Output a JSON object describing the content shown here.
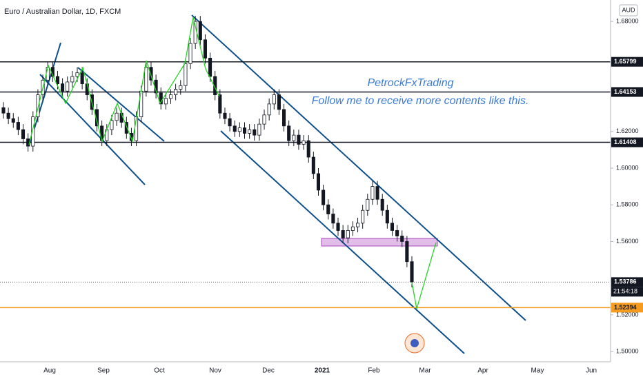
{
  "chart_data": {
    "type": "candlestick",
    "title": "Euro / Australian Dollar, 1D, FXCM",
    "currency": "AUD",
    "annotations": [
      "PetrockFxTrading",
      "Follow me to receive more contents like this."
    ],
    "xlabels": [
      "Aug",
      "Sep",
      "Oct",
      "Nov",
      "Dec",
      "2021",
      "Feb",
      "Mar",
      "Apr",
      "May",
      "Jun"
    ],
    "ylim": [
      1.4944,
      1.6917
    ],
    "yticks": [
      {
        "value": 1.68,
        "label": "1.68000"
      },
      {
        "value": 1.62,
        "label": "1.62000"
      },
      {
        "value": 1.6,
        "label": "1.60000"
      },
      {
        "value": 1.58,
        "label": "1.58000"
      },
      {
        "value": 1.56,
        "label": "1.56000"
      },
      {
        "value": 1.52,
        "label": "1.52000"
      },
      {
        "value": 1.5,
        "label": "1.50000"
      }
    ],
    "levels": [
      1.65799,
      1.64153,
      1.61408
    ],
    "level_color": "#131722",
    "last_price": 1.53786,
    "countdown": "21:54:18",
    "support": 1.52394,
    "support_color": "#f59b1f",
    "up_color": "#ffffff",
    "down_color": "#131722",
    "ohlc": [
      [
        1.633,
        1.636,
        1.627,
        1.63
      ],
      [
        1.63,
        1.633,
        1.624,
        1.627
      ],
      [
        1.627,
        1.63,
        1.622,
        1.625
      ],
      [
        1.625,
        1.628,
        1.618,
        1.621
      ],
      [
        1.621,
        1.624,
        1.613,
        1.616
      ],
      [
        1.616,
        1.619,
        1.609,
        1.612
      ],
      [
        1.612,
        1.631,
        1.609,
        1.628
      ],
      [
        1.628,
        1.643,
        1.625,
        1.64
      ],
      [
        1.64,
        1.651,
        1.637,
        1.648
      ],
      [
        1.648,
        1.658,
        1.645,
        1.655
      ],
      [
        1.655,
        1.658,
        1.647,
        1.65
      ],
      [
        1.65,
        1.653,
        1.643,
        1.646
      ],
      [
        1.646,
        1.649,
        1.639,
        1.642
      ],
      [
        1.642,
        1.65,
        1.639,
        1.647
      ],
      [
        1.647,
        1.653,
        1.644,
        1.65
      ],
      [
        1.65,
        1.655,
        1.647,
        1.652
      ],
      [
        1.652,
        1.655,
        1.643,
        1.646
      ],
      [
        1.646,
        1.649,
        1.637,
        1.64
      ],
      [
        1.64,
        1.643,
        1.629,
        1.632
      ],
      [
        1.632,
        1.635,
        1.62,
        1.623
      ],
      [
        1.623,
        1.626,
        1.612,
        1.615
      ],
      [
        1.615,
        1.624,
        1.612,
        1.621
      ],
      [
        1.621,
        1.629,
        1.618,
        1.626
      ],
      [
        1.626,
        1.633,
        1.623,
        1.63
      ],
      [
        1.63,
        1.633,
        1.622,
        1.625
      ],
      [
        1.625,
        1.628,
        1.616,
        1.619
      ],
      [
        1.619,
        1.622,
        1.612,
        1.615
      ],
      [
        1.615,
        1.631,
        1.612,
        1.628
      ],
      [
        1.628,
        1.645,
        1.625,
        1.642
      ],
      [
        1.642,
        1.658,
        1.639,
        1.655
      ],
      [
        1.655,
        1.658,
        1.645,
        1.648
      ],
      [
        1.648,
        1.651,
        1.638,
        1.641
      ],
      [
        1.641,
        1.644,
        1.632,
        1.635
      ],
      [
        1.635,
        1.641,
        1.632,
        1.638
      ],
      [
        1.638,
        1.643,
        1.635,
        1.64
      ],
      [
        1.64,
        1.646,
        1.637,
        1.643
      ],
      [
        1.643,
        1.648,
        1.64,
        1.645
      ],
      [
        1.645,
        1.66,
        1.642,
        1.657
      ],
      [
        1.657,
        1.671,
        1.654,
        1.668
      ],
      [
        1.668,
        1.683,
        1.665,
        1.68
      ],
      [
        1.68,
        1.683,
        1.667,
        1.67
      ],
      [
        1.67,
        1.673,
        1.657,
        1.66
      ],
      [
        1.66,
        1.663,
        1.647,
        1.65
      ],
      [
        1.65,
        1.653,
        1.637,
        1.64
      ],
      [
        1.64,
        1.643,
        1.627,
        1.63
      ],
      [
        1.63,
        1.633,
        1.624,
        1.627
      ],
      [
        1.627,
        1.63,
        1.62,
        1.623
      ],
      [
        1.623,
        1.626,
        1.617,
        1.62
      ],
      [
        1.62,
        1.625,
        1.617,
        1.622
      ],
      [
        1.622,
        1.625,
        1.616,
        1.619
      ],
      [
        1.619,
        1.624,
        1.616,
        1.621
      ],
      [
        1.621,
        1.624,
        1.615,
        1.618
      ],
      [
        1.618,
        1.627,
        1.615,
        1.624
      ],
      [
        1.624,
        1.632,
        1.621,
        1.629
      ],
      [
        1.629,
        1.638,
        1.626,
        1.635
      ],
      [
        1.635,
        1.643,
        1.632,
        1.64
      ],
      [
        1.64,
        1.643,
        1.629,
        1.632
      ],
      [
        1.632,
        1.635,
        1.62,
        1.623
      ],
      [
        1.623,
        1.626,
        1.612,
        1.615
      ],
      [
        1.615,
        1.621,
        1.612,
        1.618
      ],
      [
        1.618,
        1.621,
        1.61,
        1.613
      ],
      [
        1.613,
        1.618,
        1.61,
        1.615
      ],
      [
        1.615,
        1.618,
        1.603,
        1.606
      ],
      [
        1.606,
        1.609,
        1.594,
        1.597
      ],
      [
        1.597,
        1.6,
        1.585,
        1.588
      ],
      [
        1.588,
        1.591,
        1.577,
        1.58
      ],
      [
        1.58,
        1.583,
        1.572,
        1.575
      ],
      [
        1.575,
        1.578,
        1.567,
        1.57
      ],
      [
        1.57,
        1.573,
        1.563,
        1.566
      ],
      [
        1.566,
        1.569,
        1.559,
        1.562
      ],
      [
        1.562,
        1.569,
        1.559,
        1.566
      ],
      [
        1.566,
        1.571,
        1.563,
        1.568
      ],
      [
        1.568,
        1.573,
        1.565,
        1.57
      ],
      [
        1.57,
        1.58,
        1.567,
        1.577
      ],
      [
        1.577,
        1.586,
        1.574,
        1.583
      ],
      [
        1.583,
        1.593,
        1.58,
        1.59
      ],
      [
        1.59,
        1.593,
        1.58,
        1.583
      ],
      [
        1.583,
        1.586,
        1.574,
        1.577
      ],
      [
        1.577,
        1.58,
        1.567,
        1.57
      ],
      [
        1.57,
        1.573,
        1.563,
        1.566
      ],
      [
        1.566,
        1.569,
        1.56,
        1.563
      ],
      [
        1.563,
        1.566,
        1.557,
        1.56
      ],
      [
        1.56,
        1.563,
        1.546,
        1.549
      ],
      [
        1.549,
        1.552,
        1.535,
        1.538
      ]
    ]
  }
}
